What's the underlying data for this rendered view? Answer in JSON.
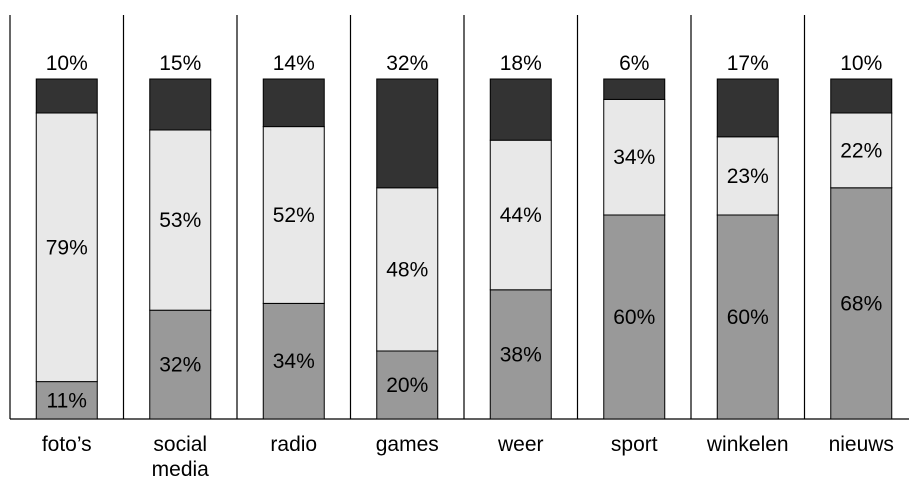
{
  "chart_data": {
    "type": "bar",
    "stacked": true,
    "categories": [
      "foto’s",
      "social media",
      "radio",
      "games",
      "weer",
      "sport",
      "winkelen",
      "nieuws"
    ],
    "category_lines": [
      [
        "foto’s"
      ],
      [
        "social",
        "media"
      ],
      [
        "radio"
      ],
      [
        "games"
      ],
      [
        "weer"
      ],
      [
        "sport"
      ],
      [
        "winkelen"
      ],
      [
        "nieuws"
      ]
    ],
    "series": [
      {
        "values": [
          11,
          32,
          34,
          20,
          38,
          60,
          60,
          68
        ],
        "color": "#999999"
      },
      {
        "values": [
          79,
          53,
          52,
          48,
          44,
          34,
          23,
          22
        ],
        "color": "#e8e8e8"
      },
      {
        "values": [
          10,
          15,
          14,
          32,
          18,
          6,
          17,
          10
        ],
        "color": "#333333"
      }
    ],
    "value_labels": [
      [
        "11%",
        "32%",
        "34%",
        "20%",
        "38%",
        "60%",
        "60%",
        "68%"
      ],
      [
        "79%",
        "53%",
        "52%",
        "48%",
        "44%",
        "34%",
        "23%",
        "22%"
      ],
      [
        "10%",
        "15%",
        "14%",
        "32%",
        "18%",
        "6%",
        "17%",
        "10%"
      ]
    ],
    "ylim": [
      0,
      100
    ],
    "grid": false,
    "legend": "none",
    "title": "",
    "xlabel": "",
    "ylabel": ""
  }
}
